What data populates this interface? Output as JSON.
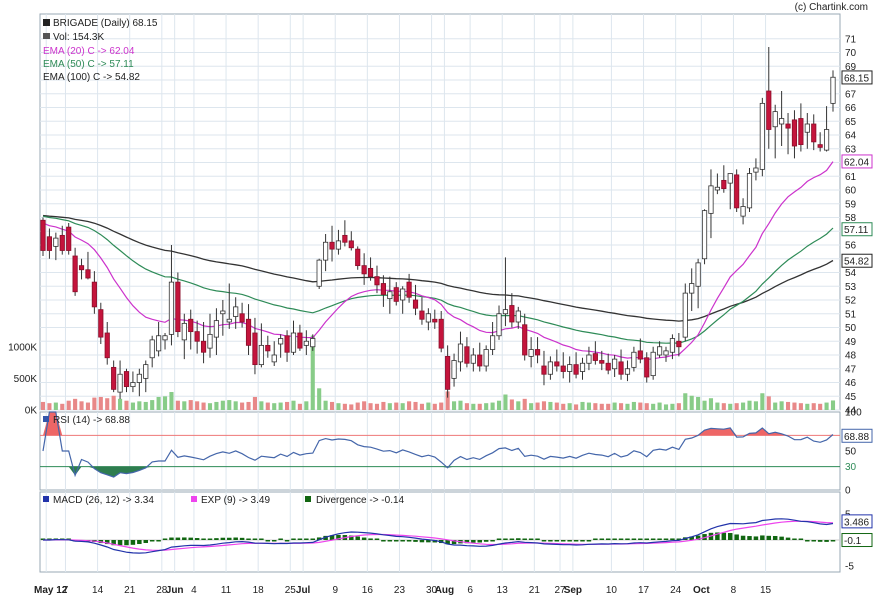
{
  "credit": "(c) Chartink.com",
  "colors": {
    "up_candle": "#ffffff",
    "down_candle": "#c4143c",
    "ema20": "#cc33cc",
    "ema50": "#2e8b57",
    "ema100": "#333333",
    "rsi": "#4466aa",
    "rsi_overbought_fill": "#ee6666",
    "rsi_oversold_fill": "#2e7d4f",
    "macd": "#2233aa",
    "signal": "#ee44ee",
    "divergence": "#116611",
    "vol_up": "#88cc88",
    "vol_down": "#e88888",
    "grid": "#dde6ee"
  },
  "legend": {
    "price": "BRIGADE (Daily) 68.15",
    "volume": "Vol: 154.3K",
    "ema20": "EMA (20) C -> 62.04",
    "ema50": "EMA (50) C -> 57.11",
    "ema100": "EMA (100) C -> 54.82",
    "rsi": "RSI (14) -> 68.88",
    "macd": "MACD (26, 12) -> 3.34",
    "exp": "EXP (9) -> 3.49",
    "divergence": "Divergence -> -0.14"
  },
  "chart_data": {
    "type": "candlestick",
    "price_axis": {
      "ticks": [
        "44",
        "45",
        "46",
        "47",
        "48",
        "49",
        "50",
        "51",
        "52",
        "53",
        "54",
        "55",
        "56",
        "57",
        "58",
        "59",
        "60",
        "61",
        "62",
        "63",
        "64",
        "65",
        "66",
        "67",
        "68",
        "69",
        "70",
        "71"
      ],
      "range": [
        44,
        71
      ],
      "last_value_tags": [
        "68.15",
        "62.04",
        "57.11",
        "54.82"
      ]
    },
    "volume_axis": {
      "ticks": [
        "0K",
        "500K",
        "1000K"
      ]
    },
    "rsi_axis": {
      "ticks": [
        "0",
        "30",
        "50",
        "70",
        "100"
      ],
      "range": [
        0,
        100
      ],
      "last_value_tag": "68.88"
    },
    "macd_axis": {
      "ticks": [
        "-5",
        "0",
        "5"
      ],
      "range": [
        -5,
        5
      ],
      "last_value_tags": [
        "3.486",
        "-0.1"
      ]
    },
    "x_axis_labels": [
      "May 12",
      "7",
      "14",
      "21",
      "28",
      "Jun",
      "4",
      "11",
      "18",
      "25",
      "Jul",
      "9",
      "16",
      "23",
      "30",
      "Aug",
      "6",
      "13",
      "21",
      "27",
      "Sep",
      "10",
      "17",
      "24",
      "Oct",
      "8",
      "15"
    ],
    "candles": [
      {
        "o": 57.8,
        "h": 58.0,
        "l": 55.2,
        "c": 55.6,
        "v": 130
      },
      {
        "o": 56.6,
        "h": 57.2,
        "l": 55.0,
        "c": 55.6,
        "v": 110
      },
      {
        "o": 55.9,
        "h": 56.9,
        "l": 54.9,
        "c": 56.5,
        "v": 120
      },
      {
        "o": 56.7,
        "h": 57.4,
        "l": 55.3,
        "c": 55.6,
        "v": 100
      },
      {
        "o": 57.3,
        "h": 57.6,
        "l": 55.3,
        "c": 55.6,
        "v": 150
      },
      {
        "o": 55.2,
        "h": 55.8,
        "l": 52.3,
        "c": 52.6,
        "v": 180
      },
      {
        "o": 54.5,
        "h": 55.0,
        "l": 53.5,
        "c": 54.2,
        "v": 140
      },
      {
        "o": 54.2,
        "h": 55.5,
        "l": 53.5,
        "c": 53.6,
        "v": 120
      },
      {
        "o": 53.3,
        "h": 54.1,
        "l": 51.0,
        "c": 51.5,
        "v": 200
      },
      {
        "o": 51.3,
        "h": 51.8,
        "l": 48.8,
        "c": 49.3,
        "v": 210
      },
      {
        "o": 49.6,
        "h": 50.4,
        "l": 47.3,
        "c": 47.8,
        "v": 190
      },
      {
        "o": 47.1,
        "h": 47.6,
        "l": 45.3,
        "c": 45.5,
        "v": 230
      },
      {
        "o": 45.3,
        "h": 47.6,
        "l": 44.8,
        "c": 46.6,
        "v": 180
      },
      {
        "o": 46.8,
        "h": 47.0,
        "l": 45.3,
        "c": 45.7,
        "v": 150
      },
      {
        "o": 45.7,
        "h": 46.8,
        "l": 45.3,
        "c": 46.0,
        "v": 120
      },
      {
        "o": 46.0,
        "h": 47.0,
        "l": 45.0,
        "c": 46.6,
        "v": 140
      },
      {
        "o": 46.3,
        "h": 47.6,
        "l": 45.3,
        "c": 47.3,
        "v": 130
      },
      {
        "o": 47.8,
        "h": 49.4,
        "l": 47.1,
        "c": 49.1,
        "v": 160
      },
      {
        "o": 48.3,
        "h": 50.4,
        "l": 47.9,
        "c": 49.4,
        "v": 210
      },
      {
        "o": 49.1,
        "h": 49.6,
        "l": 48.4,
        "c": 49.4,
        "v": 220
      },
      {
        "o": 49.5,
        "h": 56.0,
        "l": 48.7,
        "c": 53.3,
        "v": 290
      },
      {
        "o": 53.3,
        "h": 54.0,
        "l": 49.3,
        "c": 49.7,
        "v": 150
      },
      {
        "o": 49.1,
        "h": 51.0,
        "l": 47.7,
        "c": 50.3,
        "v": 140
      },
      {
        "o": 50.6,
        "h": 51.3,
        "l": 48.4,
        "c": 49.7,
        "v": 160
      },
      {
        "o": 49.7,
        "h": 50.5,
        "l": 48.1,
        "c": 49.0,
        "v": 140
      },
      {
        "o": 49.0,
        "h": 50.4,
        "l": 47.4,
        "c": 48.2,
        "v": 120
      },
      {
        "o": 48.5,
        "h": 51.0,
        "l": 47.8,
        "c": 49.5,
        "v": 110
      },
      {
        "o": 49.3,
        "h": 51.4,
        "l": 48.0,
        "c": 50.5,
        "v": 130
      },
      {
        "o": 51.0,
        "h": 52.0,
        "l": 49.4,
        "c": 51.2,
        "v": 150
      },
      {
        "o": 50.4,
        "h": 53.2,
        "l": 49.9,
        "c": 50.6,
        "v": 160
      },
      {
        "o": 50.8,
        "h": 52.2,
        "l": 49.9,
        "c": 51.5,
        "v": 140
      },
      {
        "o": 51.0,
        "h": 51.8,
        "l": 50.0,
        "c": 50.4,
        "v": 120
      },
      {
        "o": 50.6,
        "h": 51.7,
        "l": 48.0,
        "c": 48.7,
        "v": 130
      },
      {
        "o": 49.6,
        "h": 50.7,
        "l": 46.6,
        "c": 47.3,
        "v": 210
      },
      {
        "o": 47.3,
        "h": 50.3,
        "l": 47.1,
        "c": 48.7,
        "v": 140
      },
      {
        "o": 48.7,
        "h": 49.4,
        "l": 47.8,
        "c": 48.3,
        "v": 120
      },
      {
        "o": 47.5,
        "h": 49.0,
        "l": 47.2,
        "c": 48.0,
        "v": 110
      },
      {
        "o": 48.8,
        "h": 49.5,
        "l": 47.8,
        "c": 49.2,
        "v": 120
      },
      {
        "o": 49.4,
        "h": 49.8,
        "l": 47.5,
        "c": 48.2,
        "v": 130
      },
      {
        "o": 48.2,
        "h": 50.5,
        "l": 48.0,
        "c": 49.6,
        "v": 150
      },
      {
        "o": 49.6,
        "h": 50.2,
        "l": 48.3,
        "c": 48.5,
        "v": 100
      },
      {
        "o": 48.7,
        "h": 49.8,
        "l": 48.0,
        "c": 49.0,
        "v": 140
      },
      {
        "o": 48.6,
        "h": 49.5,
        "l": 48.3,
        "c": 49.2,
        "v": 1200
      },
      {
        "o": 53.0,
        "h": 55.0,
        "l": 52.8,
        "c": 54.9,
        "v": 350
      },
      {
        "o": 54.9,
        "h": 56.8,
        "l": 54.1,
        "c": 56.2,
        "v": 150
      },
      {
        "o": 56.2,
        "h": 57.4,
        "l": 54.8,
        "c": 55.7,
        "v": 130
      },
      {
        "o": 55.7,
        "h": 57.1,
        "l": 55.3,
        "c": 56.3,
        "v": 110
      },
      {
        "o": 56.7,
        "h": 57.8,
        "l": 55.9,
        "c": 56.2,
        "v": 100
      },
      {
        "o": 56.3,
        "h": 57.0,
        "l": 55.6,
        "c": 55.8,
        "v": 90
      },
      {
        "o": 55.7,
        "h": 55.9,
        "l": 54.2,
        "c": 54.5,
        "v": 120
      },
      {
        "o": 54.5,
        "h": 55.4,
        "l": 53.1,
        "c": 53.9,
        "v": 140
      },
      {
        "o": 54.3,
        "h": 55.1,
        "l": 53.4,
        "c": 53.7,
        "v": 110
      },
      {
        "o": 53.7,
        "h": 54.5,
        "l": 52.5,
        "c": 53.1,
        "v": 100
      },
      {
        "o": 53.2,
        "h": 53.8,
        "l": 51.5,
        "c": 52.4,
        "v": 130
      },
      {
        "o": 52.1,
        "h": 53.7,
        "l": 51.0,
        "c": 52.6,
        "v": 110
      },
      {
        "o": 52.9,
        "h": 53.3,
        "l": 51.6,
        "c": 51.9,
        "v": 120
      },
      {
        "o": 52.0,
        "h": 53.0,
        "l": 51.0,
        "c": 52.8,
        "v": 110
      },
      {
        "o": 53.3,
        "h": 53.9,
        "l": 51.8,
        "c": 52.2,
        "v": 140
      },
      {
        "o": 52.0,
        "h": 53.1,
        "l": 50.9,
        "c": 51.4,
        "v": 130
      },
      {
        "o": 51.2,
        "h": 52.2,
        "l": 50.2,
        "c": 50.6,
        "v": 100
      },
      {
        "o": 50.4,
        "h": 51.4,
        "l": 49.8,
        "c": 51.0,
        "v": 120
      },
      {
        "o": 50.6,
        "h": 51.3,
        "l": 49.9,
        "c": 50.4,
        "v": 100
      },
      {
        "o": 50.6,
        "h": 51.2,
        "l": 48.2,
        "c": 48.5,
        "v": 120
      },
      {
        "o": 47.9,
        "h": 48.7,
        "l": 44.9,
        "c": 45.5,
        "v": 300
      },
      {
        "o": 46.3,
        "h": 48.1,
        "l": 45.7,
        "c": 47.6,
        "v": 140
      },
      {
        "o": 47.5,
        "h": 49.7,
        "l": 46.8,
        "c": 48.8,
        "v": 150
      },
      {
        "o": 48.6,
        "h": 49.3,
        "l": 47.1,
        "c": 47.4,
        "v": 110
      },
      {
        "o": 47.4,
        "h": 48.5,
        "l": 46.8,
        "c": 48.0,
        "v": 100
      },
      {
        "o": 48.0,
        "h": 48.9,
        "l": 46.8,
        "c": 47.2,
        "v": 100
      },
      {
        "o": 47.2,
        "h": 48.7,
        "l": 46.8,
        "c": 48.4,
        "v": 110
      },
      {
        "o": 48.4,
        "h": 50.4,
        "l": 48.0,
        "c": 49.4,
        "v": 120
      },
      {
        "o": 49.4,
        "h": 51.6,
        "l": 49.1,
        "c": 51.0,
        "v": 150
      },
      {
        "o": 51.0,
        "h": 55.1,
        "l": 50.1,
        "c": 51.3,
        "v": 250
      },
      {
        "o": 51.6,
        "h": 52.5,
        "l": 50.0,
        "c": 50.4,
        "v": 170
      },
      {
        "o": 50.4,
        "h": 51.5,
        "l": 49.9,
        "c": 51.2,
        "v": 140
      },
      {
        "o": 50.2,
        "h": 51.0,
        "l": 47.6,
        "c": 48.0,
        "v": 180
      },
      {
        "o": 47.9,
        "h": 49.3,
        "l": 47.1,
        "c": 48.4,
        "v": 110
      },
      {
        "o": 48.4,
        "h": 49.3,
        "l": 47.4,
        "c": 48.0,
        "v": 120
      },
      {
        "o": 47.2,
        "h": 48.3,
        "l": 45.8,
        "c": 46.6,
        "v": 140
      },
      {
        "o": 46.6,
        "h": 47.9,
        "l": 46.2,
        "c": 47.5,
        "v": 130
      },
      {
        "o": 47.5,
        "h": 48.4,
        "l": 46.8,
        "c": 47.2,
        "v": 120
      },
      {
        "o": 47.2,
        "h": 48.2,
        "l": 46.3,
        "c": 46.8,
        "v": 100
      },
      {
        "o": 46.8,
        "h": 47.9,
        "l": 46.0,
        "c": 47.3,
        "v": 110
      },
      {
        "o": 47.3,
        "h": 48.2,
        "l": 46.3,
        "c": 46.6,
        "v": 90
      },
      {
        "o": 46.8,
        "h": 47.8,
        "l": 46.2,
        "c": 47.4,
        "v": 130
      },
      {
        "o": 47.4,
        "h": 48.6,
        "l": 46.9,
        "c": 48.0,
        "v": 120
      },
      {
        "o": 48.1,
        "h": 49.0,
        "l": 47.3,
        "c": 47.6,
        "v": 110
      },
      {
        "o": 47.6,
        "h": 48.3,
        "l": 46.9,
        "c": 47.4,
        "v": 100
      },
      {
        "o": 47.4,
        "h": 48.1,
        "l": 46.6,
        "c": 46.9,
        "v": 100
      },
      {
        "o": 47.0,
        "h": 48.0,
        "l": 46.4,
        "c": 47.7,
        "v": 120
      },
      {
        "o": 47.5,
        "h": 48.4,
        "l": 46.2,
        "c": 46.6,
        "v": 110
      },
      {
        "o": 46.6,
        "h": 47.6,
        "l": 46.1,
        "c": 47.0,
        "v": 100
      },
      {
        "o": 47.1,
        "h": 48.6,
        "l": 46.8,
        "c": 48.2,
        "v": 130
      },
      {
        "o": 48.3,
        "h": 49.2,
        "l": 47.4,
        "c": 47.7,
        "v": 120
      },
      {
        "o": 47.8,
        "h": 48.2,
        "l": 46.0,
        "c": 46.4,
        "v": 110
      },
      {
        "o": 46.5,
        "h": 48.6,
        "l": 46.2,
        "c": 48.2,
        "v": 100
      },
      {
        "o": 48.0,
        "h": 49.0,
        "l": 47.8,
        "c": 48.6,
        "v": 120
      },
      {
        "o": 48.0,
        "h": 48.6,
        "l": 47.5,
        "c": 48.3,
        "v": 90
      },
      {
        "o": 48.2,
        "h": 49.5,
        "l": 47.7,
        "c": 49.2,
        "v": 100
      },
      {
        "o": 49.0,
        "h": 49.6,
        "l": 47.9,
        "c": 48.6,
        "v": 110
      },
      {
        "o": 49.3,
        "h": 53.2,
        "l": 49.0,
        "c": 52.5,
        "v": 270
      },
      {
        "o": 52.5,
        "h": 54.3,
        "l": 51.2,
        "c": 53.2,
        "v": 230
      },
      {
        "o": 53.0,
        "h": 55.0,
        "l": 51.4,
        "c": 54.7,
        "v": 210
      },
      {
        "o": 55.0,
        "h": 58.6,
        "l": 54.6,
        "c": 58.5,
        "v": 150
      },
      {
        "o": 58.3,
        "h": 61.5,
        "l": 56.5,
        "c": 60.3,
        "v": 190
      },
      {
        "o": 60.0,
        "h": 61.2,
        "l": 59.7,
        "c": 60.2,
        "v": 120
      },
      {
        "o": 60.7,
        "h": 61.8,
        "l": 59.8,
        "c": 60.1,
        "v": 110
      },
      {
        "o": 60.5,
        "h": 61.2,
        "l": 58.6,
        "c": 61.2,
        "v": 100
      },
      {
        "o": 61.1,
        "h": 61.5,
        "l": 58.4,
        "c": 58.7,
        "v": 110
      },
      {
        "o": 58.1,
        "h": 59.4,
        "l": 57.5,
        "c": 58.8,
        "v": 120
      },
      {
        "o": 58.7,
        "h": 61.6,
        "l": 58.4,
        "c": 61.2,
        "v": 150
      },
      {
        "o": 61.3,
        "h": 62.3,
        "l": 60.7,
        "c": 61.6,
        "v": 140
      },
      {
        "o": 61.5,
        "h": 66.7,
        "l": 61.0,
        "c": 66.3,
        "v": 270
      },
      {
        "o": 67.2,
        "h": 70.4,
        "l": 63.0,
        "c": 64.4,
        "v": 220
      },
      {
        "o": 64.6,
        "h": 66.2,
        "l": 62.3,
        "c": 65.7,
        "v": 120
      },
      {
        "o": 64.8,
        "h": 67.2,
        "l": 63.2,
        "c": 65.2,
        "v": 140
      },
      {
        "o": 64.8,
        "h": 65.6,
        "l": 62.6,
        "c": 64.5,
        "v": 130
      },
      {
        "o": 65.1,
        "h": 65.8,
        "l": 62.3,
        "c": 63.2,
        "v": 120
      },
      {
        "o": 65.2,
        "h": 66.3,
        "l": 62.8,
        "c": 63.3,
        "v": 110
      },
      {
        "o": 64.2,
        "h": 65.6,
        "l": 63.0,
        "c": 64.8,
        "v": 100
      },
      {
        "o": 64.8,
        "h": 65.5,
        "l": 62.9,
        "c": 63.5,
        "v": 110
      },
      {
        "o": 63.3,
        "h": 64.2,
        "l": 62.8,
        "c": 63.1,
        "v": 100
      },
      {
        "o": 62.9,
        "h": 66.1,
        "l": 62.8,
        "c": 64.4,
        "v": 120
      },
      {
        "o": 66.3,
        "h": 68.7,
        "l": 65.7,
        "c": 68.2,
        "v": 154
      }
    ],
    "rsi_highlight_levels": [
      30,
      70
    ]
  }
}
